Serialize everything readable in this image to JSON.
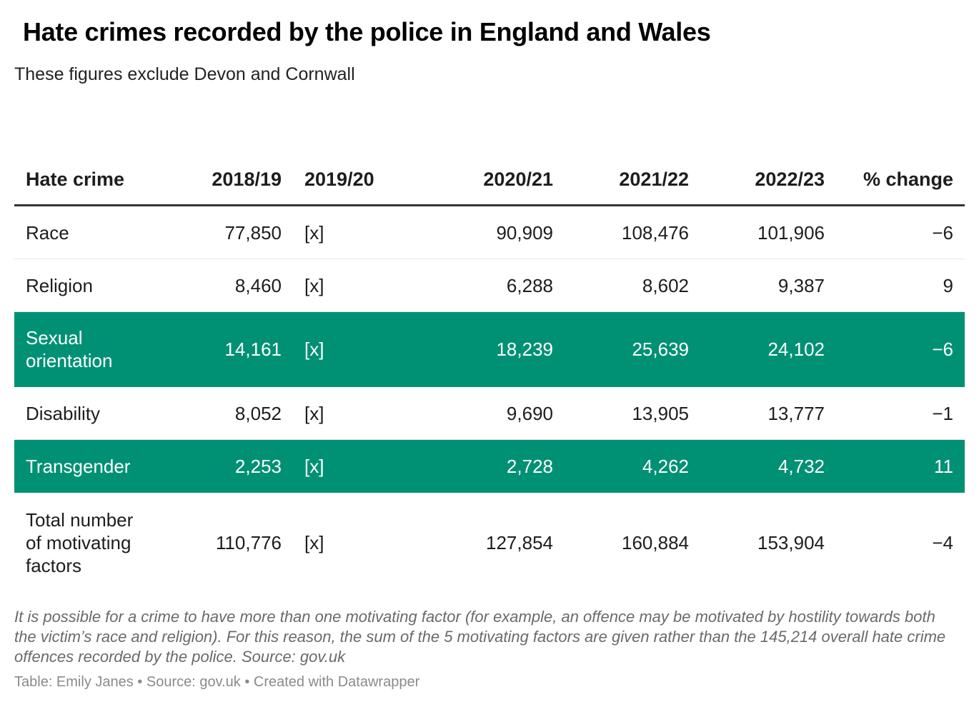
{
  "title": "Hate crimes recorded by the police in England and Wales",
  "subtitle": "These figures exclude Devon and Cornwall",
  "chart_data": {
    "type": "table",
    "columns": [
      "Hate crime",
      "2018/19",
      "2019/20",
      "2020/21",
      "2021/22",
      "2022/23",
      "% change"
    ],
    "rows": [
      {
        "label": "Race",
        "values": [
          "77,850",
          "[x]",
          "90,909",
          "108,476",
          "101,906",
          "−6"
        ],
        "highlight": false
      },
      {
        "label": "Religion",
        "values": [
          "8,460",
          "[x]",
          "6,288",
          "8,602",
          "9,387",
          "9"
        ],
        "highlight": false
      },
      {
        "label": "Sexual orientation",
        "values": [
          "14,161",
          "[x]",
          "18,239",
          "25,639",
          "24,102",
          "−6"
        ],
        "highlight": true
      },
      {
        "label": "Disability",
        "values": [
          "8,052",
          "[x]",
          "9,690",
          "13,905",
          "13,777",
          "−1"
        ],
        "highlight": false
      },
      {
        "label": "Transgender",
        "values": [
          "2,253",
          "[x]",
          "2,728",
          "4,262",
          "4,732",
          "11"
        ],
        "highlight": true
      },
      {
        "label": "Total number of motivating factors",
        "values": [
          "110,776",
          "[x]",
          "127,854",
          "160,884",
          "153,904",
          "−4"
        ],
        "highlight": false
      }
    ],
    "highlight_color": "#009175"
  },
  "notes": "It is possible for a crime to have more than one motivating factor (for example, an offence may be motivated by hostility towards both the victim’s race and religion). For this reason, the sum of the 5 motivating factors are given rather than the 145,214 overall hate crime offences recorded by the police. Source: gov.uk",
  "byline": "Table: Emily Janes • Source: gov.uk • Created with Datawrapper"
}
